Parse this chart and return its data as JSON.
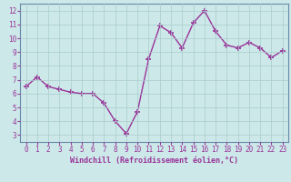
{
  "x": [
    0,
    1,
    2,
    3,
    4,
    5,
    6,
    7,
    8,
    9,
    10,
    11,
    12,
    13,
    14,
    15,
    16,
    17,
    18,
    19,
    20,
    21,
    22,
    23
  ],
  "y": [
    6.5,
    7.2,
    6.5,
    6.3,
    6.1,
    6.0,
    6.0,
    5.3,
    4.0,
    3.1,
    4.7,
    8.5,
    10.9,
    10.4,
    9.3,
    11.1,
    12.0,
    10.5,
    9.5,
    9.3,
    9.7,
    9.3,
    8.6,
    9.1
  ],
  "line_color": "#993399",
  "marker": "+",
  "markersize": 4,
  "linewidth": 1.0,
  "xlabel": "Windchill (Refroidissement éolien,°C)",
  "xlim": [
    -0.5,
    23.5
  ],
  "ylim": [
    2.5,
    12.5
  ],
  "yticks": [
    3,
    4,
    5,
    6,
    7,
    8,
    9,
    10,
    11,
    12
  ],
  "xticks": [
    0,
    1,
    2,
    3,
    4,
    5,
    6,
    7,
    8,
    9,
    10,
    11,
    12,
    13,
    14,
    15,
    16,
    17,
    18,
    19,
    20,
    21,
    22,
    23
  ],
  "bg_color": "#cce8e8",
  "grid_color": "#aacccc",
  "line_border_color": "#6688aa",
  "tick_color": "#993399",
  "label_color": "#993399",
  "font_family": "monospace",
  "tick_fontsize": 5.5,
  "xlabel_fontsize": 6.0
}
